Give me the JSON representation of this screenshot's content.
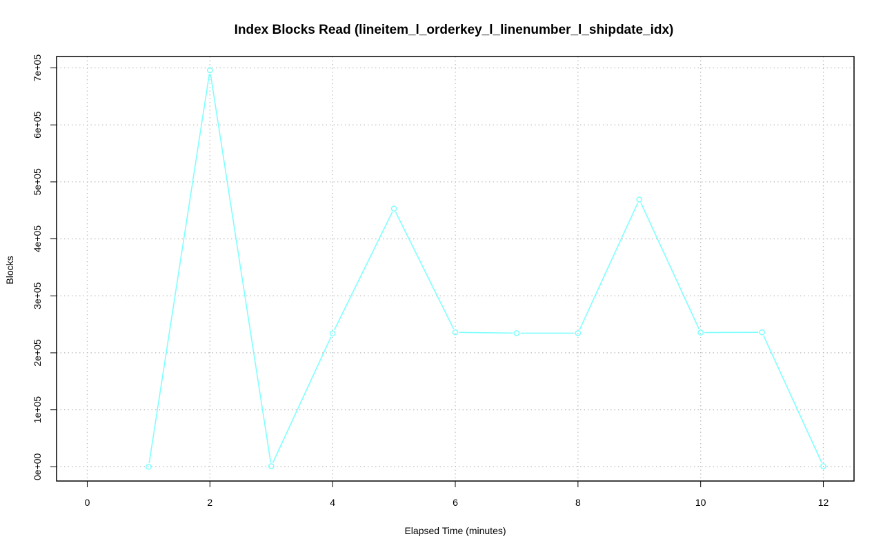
{
  "chart_data": {
    "type": "line",
    "title": "Index Blocks Read (lineitem_l_orderkey_l_linenumber_l_shipdate_idx)",
    "xlabel": "Elapsed Time (minutes)",
    "ylabel": "Blocks",
    "xlim": [
      -0.5,
      12.5
    ],
    "ylim": [
      -25000,
      720000
    ],
    "x_ticks": [
      0,
      2,
      4,
      6,
      8,
      10,
      12
    ],
    "x_tick_labels": [
      "0",
      "2",
      "4",
      "6",
      "8",
      "10",
      "12"
    ],
    "y_ticks": [
      0,
      100000,
      200000,
      300000,
      400000,
      500000,
      600000,
      700000
    ],
    "y_tick_labels": [
      "0e+00",
      "1e+05",
      "2e+05",
      "3e+05",
      "4e+05",
      "5e+05",
      "6e+05",
      "7e+05"
    ],
    "grid": true,
    "series": [
      {
        "color": "#7fffff",
        "x": [
          1,
          2,
          3,
          4,
          5,
          6,
          7,
          8,
          9,
          10,
          11,
          12
        ],
        "y": [
          0,
          696000,
          1000,
          234000,
          453000,
          236000,
          234500,
          234500,
          469000,
          235500,
          236000,
          1000
        ]
      }
    ]
  }
}
